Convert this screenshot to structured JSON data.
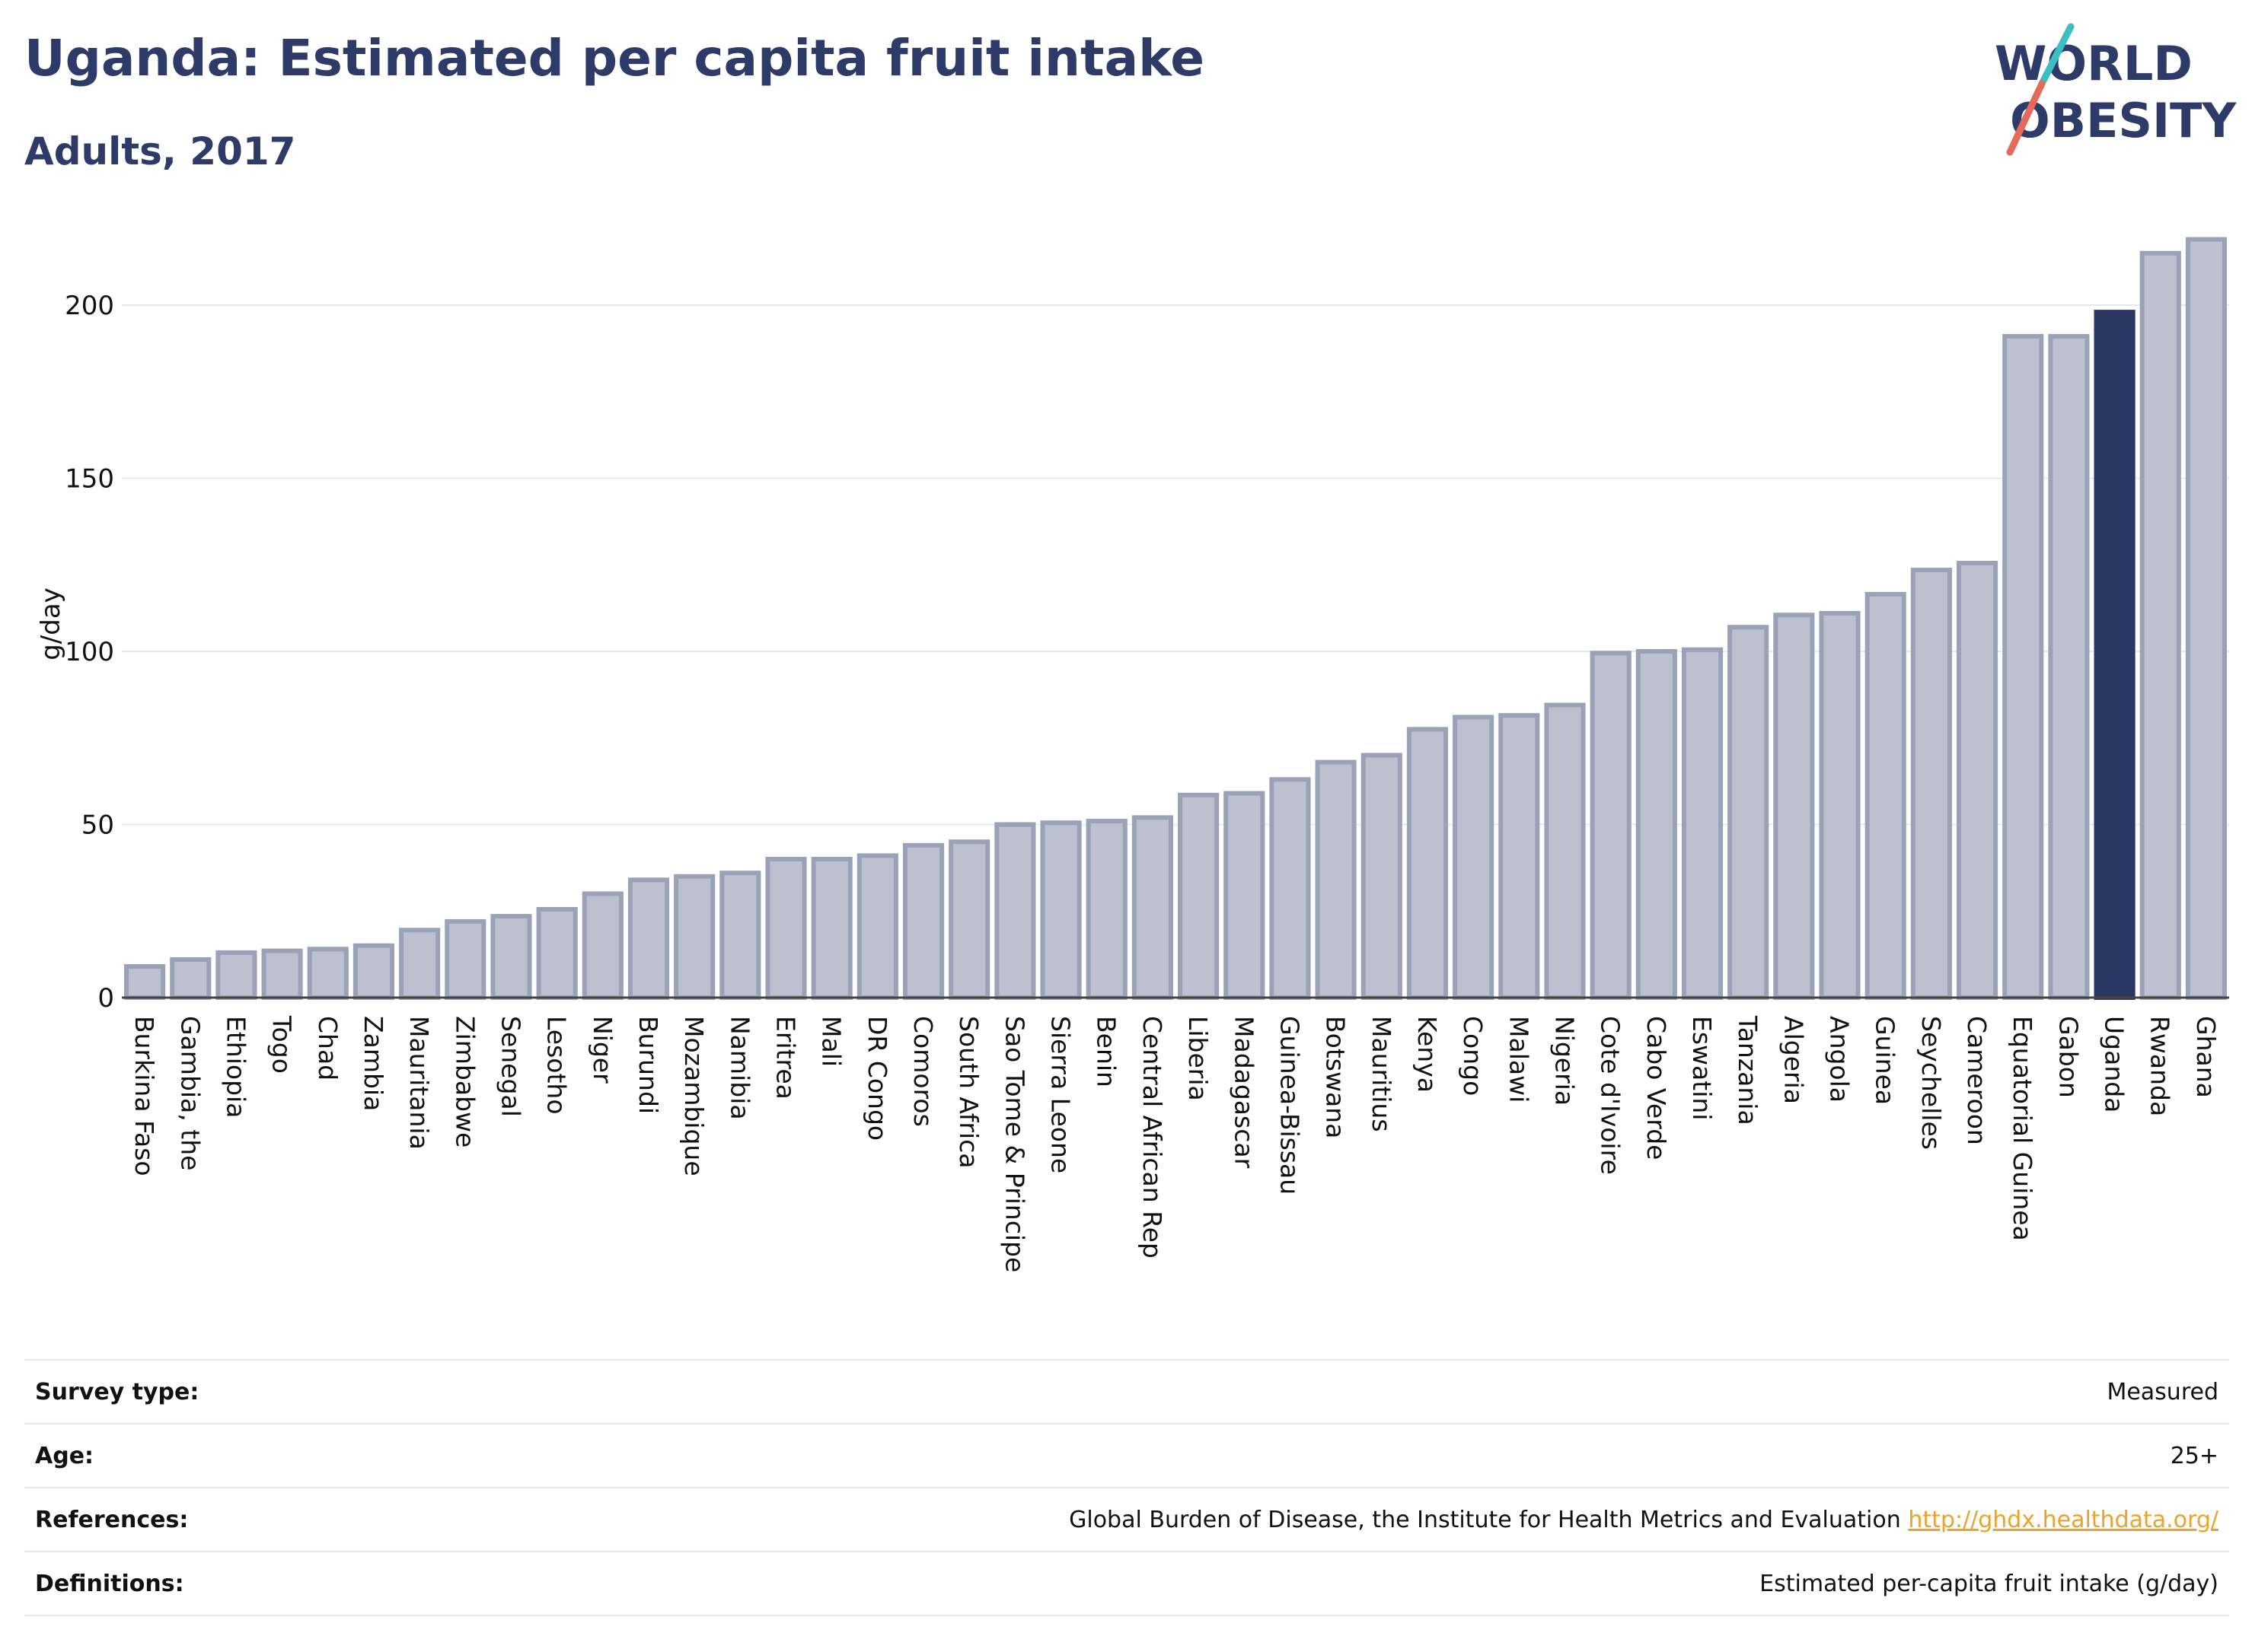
{
  "title": "Uganda: Estimated per capita fruit intake",
  "subtitle": "Adults, 2017",
  "logo": {
    "line1": "WORLD",
    "line2": "OBESITY"
  },
  "colors": {
    "bar": "#bcc0cf",
    "bar_border": "#9ba2b8",
    "highlight": "#2b3663",
    "title": "#2e3a67",
    "link": "#e9a42d"
  },
  "chart_data": {
    "type": "bar",
    "ylabel": "g/day",
    "ylim": [
      0,
      220
    ],
    "yticks": [
      0,
      50,
      100,
      150,
      200
    ],
    "grid": true,
    "highlight": "Uganda",
    "categories": [
      "Burkina Faso",
      "Gambia, the",
      "Ethiopia",
      "Togo",
      "Chad",
      "Zambia",
      "Mauritania",
      "Zimbabwe",
      "Senegal",
      "Lesotho",
      "Niger",
      "Burundi",
      "Mozambique",
      "Namibia",
      "Eritrea",
      "Mali",
      "DR Congo",
      "Comoros",
      "South Africa",
      "Sao Tome & Principe",
      "Sierra Leone",
      "Benin",
      "Central African Rep",
      "Liberia",
      "Madagascar",
      "Guinea-Bissau",
      "Botswana",
      "Mauritius",
      "Kenya",
      "Congo",
      "Malawi",
      "Nigeria",
      "Cote d'Ivoire",
      "Cabo Verde",
      "Eswatini",
      "Tanzania",
      "Algeria",
      "Angola",
      "Guinea",
      "Seychelles",
      "Cameroon",
      "Equatorial Guinea",
      "Gabon",
      "Uganda",
      "Rwanda",
      "Ghana"
    ],
    "values": [
      9,
      11,
      13,
      13.5,
      14,
      15,
      19.5,
      22,
      23.5,
      25.5,
      30,
      34,
      35,
      36,
      40,
      40,
      41,
      44,
      45,
      50,
      50.5,
      51,
      52,
      58.5,
      59,
      63,
      68,
      70,
      77.5,
      81,
      81.5,
      84.5,
      99.5,
      100,
      100.5,
      107,
      110.5,
      111,
      116.5,
      123.5,
      125.5,
      191,
      191,
      198,
      215,
      219
    ]
  },
  "info": {
    "survey_type": {
      "label": "Survey type:",
      "value": "Measured"
    },
    "age": {
      "label": "Age:",
      "value": "25+"
    },
    "references": {
      "label": "References:",
      "value": "Global Burden of Disease, the Institute for Health Metrics and Evaluation",
      "link": "http://ghdx.healthdata.org/"
    },
    "definitions": {
      "label": "Definitions:",
      "value": "Estimated per-capita fruit intake (g/day)"
    }
  }
}
